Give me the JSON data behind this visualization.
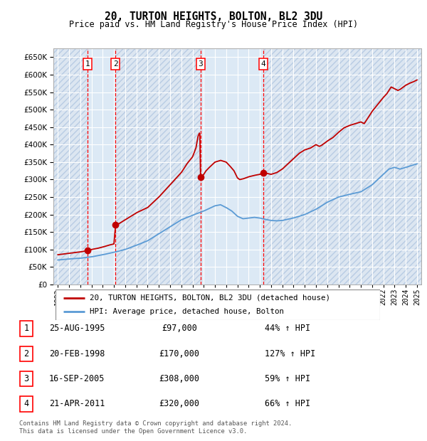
{
  "title": "20, TURTON HEIGHTS, BOLTON, BL2 3DU",
  "subtitle": "Price paid vs. HM Land Registry's House Price Index (HPI)",
  "ylim": [
    0,
    675000
  ],
  "yticks": [
    0,
    50000,
    100000,
    150000,
    200000,
    250000,
    300000,
    350000,
    400000,
    450000,
    500000,
    550000,
    600000,
    650000
  ],
  "xlim_start": 1992.6,
  "xlim_end": 2025.4,
  "background_color": "#ffffff",
  "plot_bg_color": "#dce6f1",
  "hatch_color": "#b8cce4",
  "grid_color": "#ffffff",
  "sale_color": "#c00000",
  "hpi_color": "#5b9bd5",
  "transactions": [
    {
      "date": 1995.646,
      "price": 97000,
      "label": "1"
    },
    {
      "date": 1998.138,
      "price": 170000,
      "label": "2"
    },
    {
      "date": 2005.712,
      "price": 308000,
      "label": "3"
    },
    {
      "date": 2011.305,
      "price": 320000,
      "label": "4"
    }
  ],
  "legend_sale_label": "20, TURTON HEIGHTS, BOLTON, BL2 3DU (detached house)",
  "legend_hpi_label": "HPI: Average price, detached house, Bolton",
  "table_rows": [
    [
      "1",
      "25-AUG-1995",
      "£97,000",
      "44% ↑ HPI"
    ],
    [
      "2",
      "20-FEB-1998",
      "£170,000",
      "127% ↑ HPI"
    ],
    [
      "3",
      "16-SEP-2005",
      "£308,000",
      "59% ↑ HPI"
    ],
    [
      "4",
      "21-APR-2011",
      "£320,000",
      "66% ↑ HPI"
    ]
  ],
  "footnote": "Contains HM Land Registry data © Crown copyright and database right 2024.\nThis data is licensed under the Open Government Licence v3.0.",
  "vline_color": "#ff0000"
}
